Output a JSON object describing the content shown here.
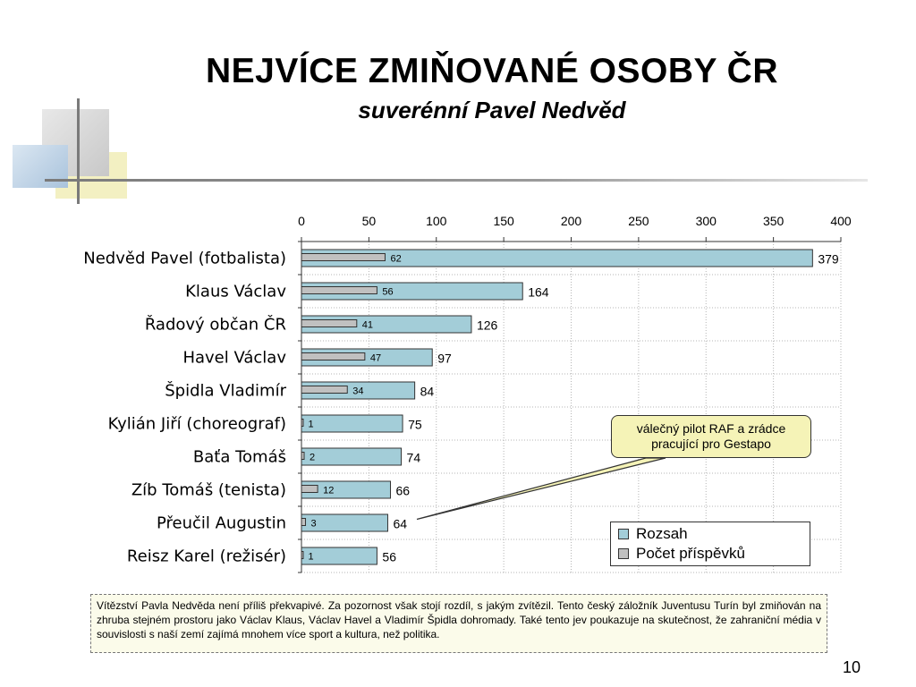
{
  "slide": {
    "title": "NEJVÍCE ZMIŇOVANÉ OSOBY ČR",
    "subtitle": "suverénní Pavel Nedvěd",
    "page_number": "10",
    "note": "Vítězství Pavla Nedvěda není příliš překvapivé. Za pozornost však stojí rozdíl, s jakým zvítězil. Tento český záložník Juventusu Turín byl zmiňován na zhruba stejném prostoru jako Václav Klaus, Václav Havel a Vladimír Špidla dohromady. Také tento jev poukazuje na skutečnost, že zahraniční média v souvislosti s naší zemí zajímá mnohem více sport a kultura, než politika.",
    "callout": "válečný pilot RAF a zrádce pracující pro Gestapo"
  },
  "colors": {
    "rozsah": "#a3cdd8",
    "pocet": "#c0c0c0",
    "callout_bg": "#f5f3b7"
  },
  "chart_data": {
    "type": "bar",
    "orientation": "horizontal",
    "categories": [
      "Nedvěd Pavel (fotbalista)",
      "Klaus Václav",
      "Řadový občan ČR",
      "Havel Václav",
      "Špidla Vladimír",
      "Kylián Jiří (choreograf)",
      "Baťa Tomáš",
      "Zíb Tomáš (tenista)",
      "Přeučil Augustin",
      "Reisz Karel (režisér)"
    ],
    "series": [
      {
        "name": "Rozsah",
        "values": [
          379,
          164,
          126,
          97,
          84,
          75,
          74,
          66,
          64,
          56
        ]
      },
      {
        "name": "Počet příspěvků",
        "values": [
          62,
          56,
          41,
          47,
          34,
          1,
          2,
          12,
          3,
          1
        ]
      }
    ],
    "xlim": [
      0,
      400
    ],
    "xticks": [
      "0",
      "50",
      "100",
      "150",
      "200",
      "250",
      "300",
      "350",
      "400"
    ],
    "axis_position": "top",
    "grid": true,
    "legend_position": "bottom-right"
  }
}
